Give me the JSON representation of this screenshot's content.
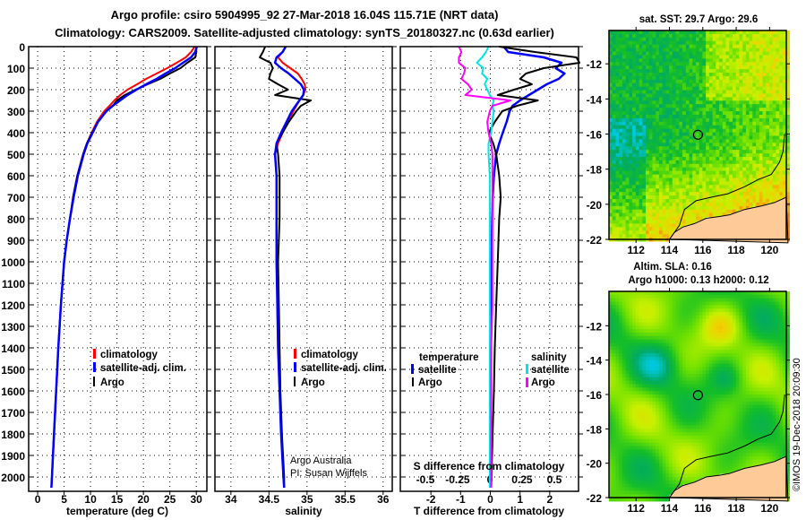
{
  "titles": {
    "line1": "Argo profile: csiro 5904995_92 27-Mar-2018 16.04S 115.71E (NRT data)",
    "line2": "Climatology: CARS2009. Satellite-adjusted climatology: synTS_20180327.nc (0.63d earlier)"
  },
  "colors": {
    "climatology": "#ff0000",
    "satellite": "#0000ff",
    "argo": "#000000",
    "sal_satellite": "#00e5e5",
    "sal_argo": "#ff00ff",
    "land": "#fdca98"
  },
  "depth_axis": {
    "ticks": [
      0,
      100,
      200,
      300,
      400,
      500,
      600,
      700,
      800,
      900,
      1000,
      1100,
      1200,
      1300,
      1400,
      1500,
      1600,
      1700,
      1800,
      1900,
      2000
    ],
    "range": [
      0,
      2067
    ]
  },
  "chart_data": [
    {
      "type": "line",
      "name": "temperature-panel",
      "xlabel": "temperature (deg C)",
      "ylabel": "depth",
      "xlim": [
        -1.7,
        32
      ],
      "xticks": [
        "0",
        "5",
        "10",
        "15",
        "20",
        "25",
        "30"
      ],
      "xtick_values": [
        0,
        5,
        10,
        15,
        20,
        25,
        30
      ],
      "legend": [
        "climatology",
        "satellite-adj. clim.",
        "Argo"
      ],
      "depth": [
        0,
        25,
        50,
        75,
        100,
        125,
        150,
        175,
        200,
        225,
        250,
        275,
        300,
        350,
        400,
        450,
        500,
        600,
        700,
        800,
        900,
        1000,
        1200,
        1400,
        1600,
        1800,
        2000,
        2050
      ],
      "series": [
        {
          "name": "climatology",
          "color": "#ff0000",
          "values": [
            29.7,
            29.0,
            28.0,
            26.3,
            24.5,
            22.5,
            20.5,
            18.8,
            17.0,
            15.6,
            14.5,
            13.6,
            12.6,
            11.2,
            10.2,
            9.3,
            8.6,
            7.5,
            6.7,
            6.1,
            5.5,
            5.0,
            4.4,
            3.9,
            3.5,
            3.1,
            2.7,
            2.6
          ]
        },
        {
          "name": "Argo",
          "color": "#000000",
          "values": [
            30.0,
            30.0,
            29.8,
            28.3,
            27.0,
            25.0,
            23.2,
            20.8,
            18.5,
            16.5,
            15.0,
            14.2,
            13.0,
            11.4,
            10.3,
            9.3,
            8.6,
            7.5,
            6.7,
            6.1,
            5.5,
            5.0,
            4.4,
            3.9,
            3.5,
            3.1,
            2.7,
            2.6
          ]
        },
        {
          "name": "satellite-adj. clim.",
          "color": "#0000ff",
          "values": [
            30.1,
            29.8,
            29.0,
            27.5,
            26.0,
            24.2,
            22.5,
            20.5,
            18.7,
            17.0,
            15.6,
            14.2,
            13.0,
            11.4,
            10.4,
            9.4,
            8.7,
            7.6,
            6.8,
            6.1,
            5.5,
            5.0,
            4.4,
            3.9,
            3.5,
            3.1,
            2.7,
            2.6
          ]
        }
      ]
    },
    {
      "type": "line",
      "name": "salinity-panel",
      "xlabel": "salinity",
      "ylabel": "depth",
      "xlim": [
        33.79,
        36.12
      ],
      "xticks": [
        "34",
        "34.5",
        "35",
        "35.5",
        "36"
      ],
      "xtick_values": [
        34,
        34.5,
        35,
        35.5,
        36
      ],
      "legend": [
        "climatology",
        "satellite-adj. clim.",
        "Argo"
      ],
      "credits": [
        "Argo Australia",
        "PI: Susan Wijffels"
      ],
      "depth": [
        0,
        25,
        50,
        75,
        100,
        125,
        150,
        175,
        200,
        225,
        250,
        275,
        300,
        350,
        400,
        450,
        500,
        600,
        800,
        1000,
        1200,
        1400,
        1600,
        1800,
        2000,
        2050
      ],
      "series": [
        {
          "name": "climatology",
          "color": "#ff0000",
          "values": [
            34.72,
            34.68,
            34.62,
            34.68,
            34.78,
            34.88,
            34.93,
            34.97,
            34.98,
            34.95,
            34.9,
            34.86,
            34.82,
            34.75,
            34.68,
            34.62,
            34.58,
            34.6,
            34.6,
            34.6,
            34.61,
            34.62,
            34.64,
            34.66,
            34.69,
            34.7
          ]
        },
        {
          "name": "Argo",
          "color": "#000000",
          "values": [
            34.45,
            34.42,
            34.38,
            34.52,
            34.55,
            34.52,
            34.5,
            34.62,
            34.75,
            34.58,
            35.05,
            34.92,
            34.86,
            34.76,
            34.68,
            34.6,
            34.62,
            34.64,
            34.64,
            34.62,
            34.63,
            34.64,
            34.65,
            34.67,
            34.7,
            34.7
          ]
        },
        {
          "name": "satellite-adj. clim.",
          "color": "#0000ff",
          "values": [
            34.72,
            34.68,
            34.6,
            34.58,
            34.66,
            34.76,
            34.84,
            34.92,
            34.96,
            34.95,
            34.9,
            34.85,
            34.8,
            34.73,
            34.66,
            34.6,
            34.58,
            34.6,
            34.6,
            34.6,
            34.61,
            34.62,
            34.64,
            34.66,
            34.69,
            34.7
          ]
        }
      ]
    },
    {
      "type": "line",
      "name": "difference-panel",
      "xlabel": "T difference from climatology",
      "s_label": "S difference from climatology",
      "xlim": [
        -3.03,
        2.97
      ],
      "xticks": [
        "-2",
        "-1",
        "0",
        "1",
        "2"
      ],
      "xtick_values": [
        -2,
        -1,
        0,
        1,
        2
      ],
      "s_xlim": [
        -0.694,
        0.688
      ],
      "s_ticks": [
        "-0.5",
        "-0.25",
        "0",
        "0.25",
        "0.5"
      ],
      "s_tick_values": [
        -0.5,
        -0.25,
        0,
        0.25,
        0.5
      ],
      "legend": {
        "temperature_title": "temperature",
        "salinity_title": "salinity",
        "items": [
          "satellite",
          "Argo"
        ]
      },
      "depth": [
        0,
        25,
        50,
        75,
        100,
        125,
        150,
        175,
        200,
        225,
        250,
        275,
        300,
        350,
        400,
        450,
        500,
        600,
        700,
        800,
        1000,
        1200,
        1400,
        1600,
        1800,
        2000,
        2050
      ],
      "series": [
        {
          "name": "T satellite",
          "kind": "T",
          "color": "#0000ff",
          "values": [
            0.45,
            0.6,
            1.8,
            2.4,
            2.2,
            2.5,
            2.3,
            1.9,
            1.6,
            1.3,
            1.0,
            0.75,
            0.65,
            0.55,
            0.42,
            0.3,
            0.2,
            0.12,
            0.08,
            0.06,
            0.04,
            0.03,
            0.02,
            0.02,
            0.01,
            0.0,
            0.0
          ]
        },
        {
          "name": "T Argo",
          "kind": "T",
          "color": "#000000",
          "values": [
            0.3,
            1.5,
            2.9,
            3.0,
            1.8,
            1.2,
            1.0,
            1.4,
            0.8,
            0.25,
            1.6,
            0.9,
            0.4,
            0.15,
            -0.05,
            0.1,
            0.2,
            0.3,
            0.35,
            0.3,
            0.25,
            0.2,
            0.15,
            0.12,
            0.08,
            0.04,
            0.03
          ]
        },
        {
          "name": "S satellite",
          "kind": "S",
          "color": "#00e5e5",
          "values": [
            -0.01,
            -0.03,
            -0.06,
            -0.1,
            -0.05,
            -0.06,
            -0.02,
            -0.04,
            -0.02,
            0.0,
            0.03,
            0.02,
            0.03,
            0.02,
            0.01,
            -0.01,
            -0.01,
            0.0,
            0.0,
            0.0,
            0.0,
            0.0,
            0.0,
            0.0,
            0.0,
            0.0,
            0.0
          ]
        },
        {
          "name": "S Argo",
          "kind": "S",
          "color": "#ff00ff",
          "values": [
            -0.24,
            -0.22,
            -0.24,
            -0.24,
            -0.19,
            -0.2,
            -0.22,
            -0.17,
            -0.14,
            -0.19,
            0.16,
            0.02,
            0.0,
            -0.02,
            -0.01,
            0.01,
            0.02,
            0.02,
            0.02,
            0.02,
            0.02,
            0.02,
            0.01,
            0.01,
            0.01,
            0.01,
            0.01
          ]
        }
      ]
    }
  ],
  "maps": [
    {
      "name": "sst-map",
      "title": "sat. SST: 29.7 Argo: 29.6",
      "lon_ticks": [
        "112",
        "114",
        "116",
        "118",
        "120"
      ],
      "lat_ticks": [
        "-12",
        "-14",
        "-16",
        "-18",
        "-20",
        "-22"
      ],
      "float_lon": 115.71,
      "float_lat": -16.04
    },
    {
      "name": "sla-map",
      "title1": "Altim. SLA: 0.16",
      "title2": "Argo h1000: 0.13 h2000: 0.12",
      "lon_ticks": [
        "112",
        "114",
        "116",
        "118",
        "120"
      ],
      "lat_ticks": [
        "-12",
        "-14",
        "-16",
        "-18",
        "-20",
        "-22"
      ],
      "float_lon": 115.71,
      "float_lat": -16.04
    }
  ],
  "credit": "©IMOS 19-Dec-2018 20:09:30"
}
